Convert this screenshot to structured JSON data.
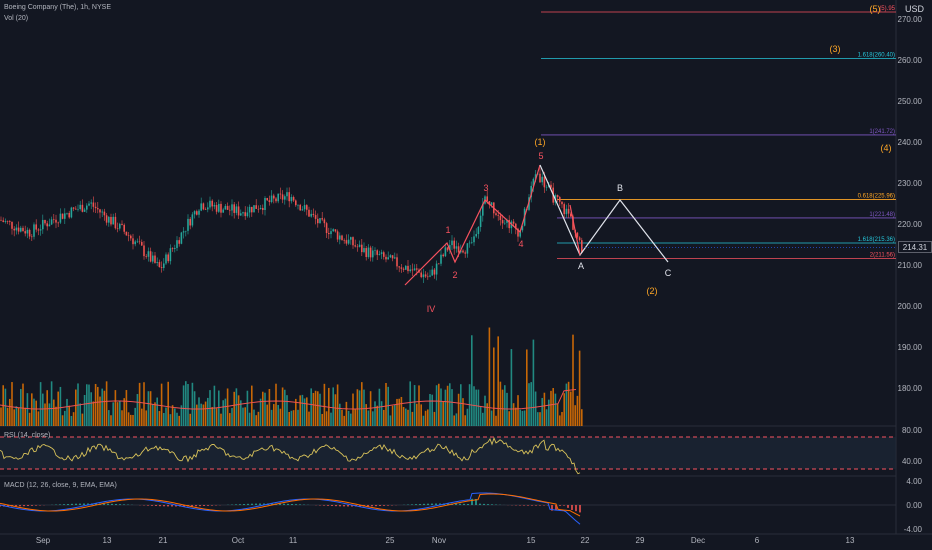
{
  "header": {
    "symbol": "Boeing Company (The), 1h, NYSE",
    "vol_label": "Vol (20)",
    "rsi_label": "RSI (14, close)",
    "macd_label": "MACD (12, 26, close, 9, EMA, EMA)"
  },
  "currency": "USD",
  "last_price": "214.31",
  "colors": {
    "background": "#131722",
    "wave_red": "#f7525f",
    "wave_orange": "#ffa726",
    "projection_white": "#e0e3eb",
    "fib_blue": "#2962ff",
    "rsi_line": "#d8c25a",
    "macd_line": "#2962ff",
    "signal_line": "#ff6d00",
    "vol_up": "#26a69a",
    "vol_down": "#f57c00"
  },
  "price_axis": [
    "270.00",
    "260.00",
    "250.00",
    "240.00",
    "230.00",
    "220.00",
    "210.00",
    "200.00",
    "190.00",
    "180.00"
  ],
  "rsi_axis": [
    "80.00",
    "40.00"
  ],
  "macd_axis": [
    "4.00",
    "0.00",
    "-4.00"
  ],
  "time_axis": [
    "Sep",
    "13",
    "21",
    "Oct",
    "11",
    "25",
    "Nov",
    "15",
    "22",
    "29",
    "Dec",
    "6",
    "13"
  ],
  "fib_levels": [
    {
      "label": "1.618(260.40)",
      "value": 260.4
    },
    {
      "label": "1(241.72)",
      "value": 241.72
    },
    {
      "label": "0.618(225.96)",
      "value": 225.96
    },
    {
      "label": "1(221.48)",
      "value": 221.48
    },
    {
      "label": "1.618(215.36)",
      "value": 215.36
    },
    {
      "label": "2(211.56)",
      "value": 211.56
    }
  ],
  "wave_labels": {
    "w1_small": "1",
    "w2_small": "2",
    "w3_small": "3",
    "w4_small": "4",
    "w5_small": "5",
    "wIV": "IV",
    "w1_big": "(1)",
    "w2_big": "(2)",
    "w3_big": "(3)",
    "w4_big": "(4)",
    "w5_big": "(5)",
    "A": "A",
    "B": "B",
    "C": "C",
    "w5_top_value": "(5)"
  },
  "top_value_label": "(5)",
  "top_fib_label": "(5).95"
}
